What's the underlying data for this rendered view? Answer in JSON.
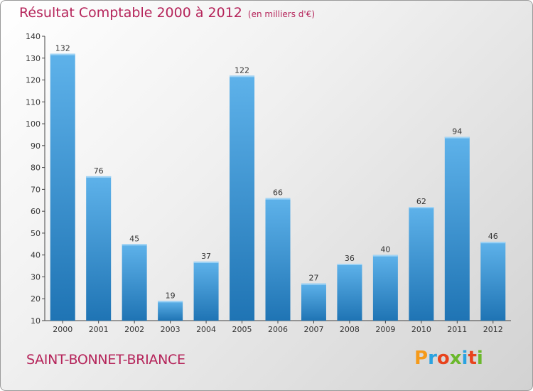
{
  "header": {
    "title": "Résultat Comptable 2000 à 2012",
    "subtitle": "(en milliers d'€)"
  },
  "footer": {
    "commune": "SAINT-BONNET-BRIANCE",
    "logo_text": "Proxiti"
  },
  "colors": {
    "accent": "#b5245a",
    "bar_top": "#5eb2ea",
    "bar_bottom": "#1f74b4"
  },
  "chart_data": {
    "type": "bar",
    "title": "Résultat Comptable 2000 à 2012",
    "subtitle": "(en milliers d'€)",
    "xlabel": "",
    "ylabel": "",
    "categories": [
      "2000",
      "2001",
      "2002",
      "2003",
      "2004",
      "2005",
      "2006",
      "2007",
      "2008",
      "2009",
      "2010",
      "2011",
      "2012"
    ],
    "values": [
      132,
      76,
      45,
      19,
      37,
      122,
      66,
      27,
      36,
      40,
      62,
      94,
      46
    ],
    "ylim": [
      10,
      140
    ],
    "yticks": [
      10,
      20,
      30,
      40,
      50,
      60,
      70,
      80,
      90,
      100,
      110,
      120,
      130,
      140
    ],
    "grid": false,
    "legend": "none"
  }
}
